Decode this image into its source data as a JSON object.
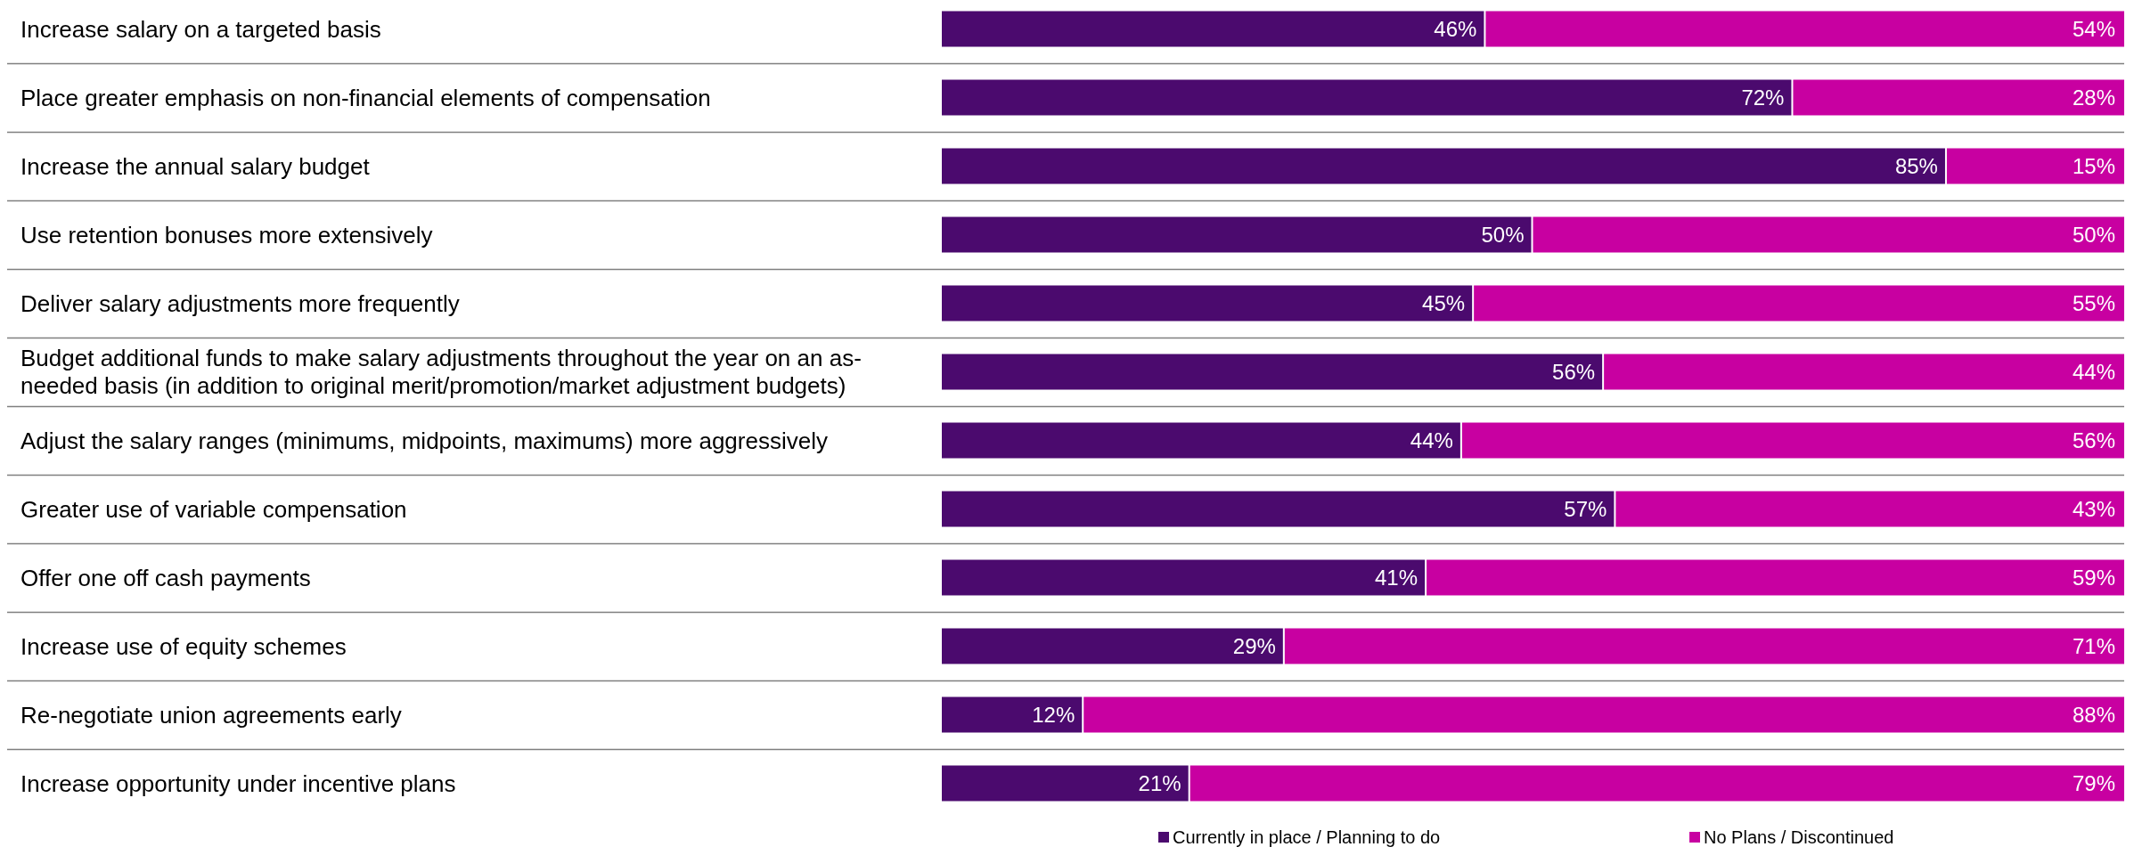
{
  "chart_data": {
    "type": "bar",
    "orientation": "horizontal",
    "stacked": true,
    "legend": "bottom",
    "categories": [
      "Increase salary on a targeted basis",
      "Place greater emphasis on non-financial elements of compensation",
      "Increase the annual salary budget",
      "Use retention bonuses more extensively",
      "Deliver salary adjustments more frequently",
      "Budget additional funds to make salary adjustments throughout the year on an as-needed basis (in addition to original merit/promotion/market adjustment budgets)",
      "Adjust the salary ranges (minimums, midpoints, maximums) more aggressively",
      "Greater use of variable compensation",
      "Offer one off cash payments",
      "Increase use of equity schemes",
      "Re-negotiate union agreements early",
      "Increase opportunity under incentive plans"
    ],
    "series": [
      {
        "name": "Currently in place / Planning to do",
        "color": "#4b0a6e",
        "values": [
          46,
          72,
          85,
          50,
          45,
          56,
          44,
          57,
          41,
          29,
          12,
          21
        ],
        "value_labels": [
          "46%",
          "72%",
          "85%",
          "50%",
          "45%",
          "56%",
          "44%",
          "57%",
          "41%",
          "29%",
          "12%",
          "21%"
        ]
      },
      {
        "name": "No Plans / Discontinued",
        "color": "#c800a1",
        "values": [
          54,
          28,
          15,
          50,
          55,
          44,
          56,
          43,
          59,
          71,
          88,
          79
        ],
        "value_labels": [
          "54%",
          "28%",
          "15%",
          "50%",
          "55%",
          "44%",
          "56%",
          "43%",
          "59%",
          "71%",
          "88%",
          "79%"
        ]
      }
    ]
  }
}
